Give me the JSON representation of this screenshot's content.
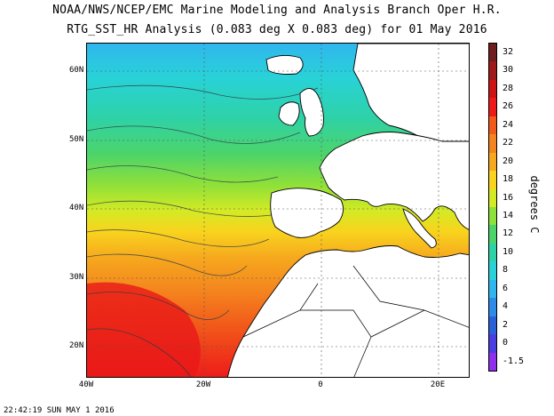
{
  "title_line1": "NOAA/NWS/NCEP/EMC Marine Modeling and Analysis Branch Oper H.R.",
  "title_line2": "RTG_SST_HR Analysis (0.083 deg X 0.083 deg) for 01 May 2016",
  "units_label": "degrees C",
  "timestamp": "22:42:19  SUN MAY 1 2016",
  "map": {
    "lat_labels": [
      "60N",
      "50N",
      "40N",
      "30N",
      "20N"
    ],
    "lon_labels": [
      "40W",
      "20W",
      "0",
      "20E"
    ],
    "extent": {
      "lon_min": -40,
      "lon_max": 25,
      "lat_min": 15,
      "lat_max": 65
    }
  },
  "colorbar": {
    "labels": [
      "32",
      "30",
      "28",
      "26",
      "24",
      "22",
      "20",
      "18",
      "16",
      "14",
      "12",
      "10",
      "8",
      "6",
      "4",
      "2",
      "0",
      "-1.5"
    ],
    "colors": [
      "#6e1e1e",
      "#9e1a1a",
      "#cc1414",
      "#ee1a1a",
      "#f25a1a",
      "#f4841e",
      "#f6a81e",
      "#f8d41e",
      "#d4ea24",
      "#8ee03a",
      "#4cd46a",
      "#2ed2a8",
      "#28d2d8",
      "#30b6ee",
      "#2e8ce8",
      "#2a60d8",
      "#4a3ee0",
      "#8e30ec"
    ]
  }
}
